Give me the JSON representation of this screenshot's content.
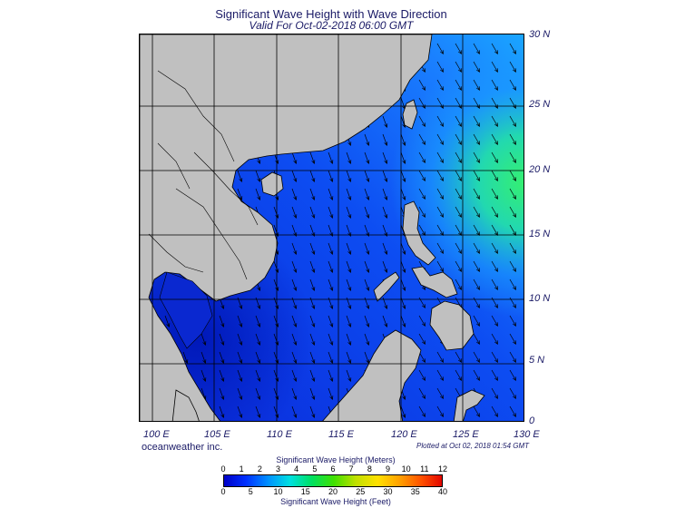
{
  "header": {
    "title": "Significant Wave Height with Wave Direction",
    "subtitle": "Valid For Oct-02-2018 06:00 GMT"
  },
  "map": {
    "lat_labels": [
      "30 N",
      "25 N",
      "20 N",
      "15 N",
      "10 N",
      "5 N",
      "0"
    ],
    "lon_labels": [
      "100 E",
      "105 E",
      "110 E",
      "115 E",
      "120 E",
      "125 E",
      "130 E"
    ],
    "extent": {
      "lon_min": 99,
      "lon_max": 130,
      "lat_min": 0,
      "lat_max": 30
    },
    "grid": true,
    "colors": {
      "land": "#c0c0c0",
      "ocean_low": "#0a2ee0",
      "ocean_mid": "#1566ff",
      "ocean_high": "#2be28a"
    }
  },
  "footer": {
    "brand": "oceanweather inc.",
    "plotted": "Plotted at Oct 02, 2018 01:54 GMT"
  },
  "legend": {
    "meters_title": "Significant Wave Height (Meters)",
    "feet_title": "Significant Wave Height (Feet)",
    "meters_ticks": [
      "0",
      "1",
      "2",
      "3",
      "4",
      "5",
      "6",
      "7",
      "8",
      "9",
      "10",
      "11",
      "12"
    ],
    "feet_ticks": [
      "0",
      "5",
      "10",
      "15",
      "20",
      "25",
      "30",
      "35",
      "40"
    ],
    "colors": [
      "#0000c8",
      "#0030ff",
      "#0090ff",
      "#00e0e0",
      "#00e060",
      "#40e000",
      "#c0e000",
      "#ffe000",
      "#ffa000",
      "#ff5000",
      "#e00000"
    ]
  }
}
